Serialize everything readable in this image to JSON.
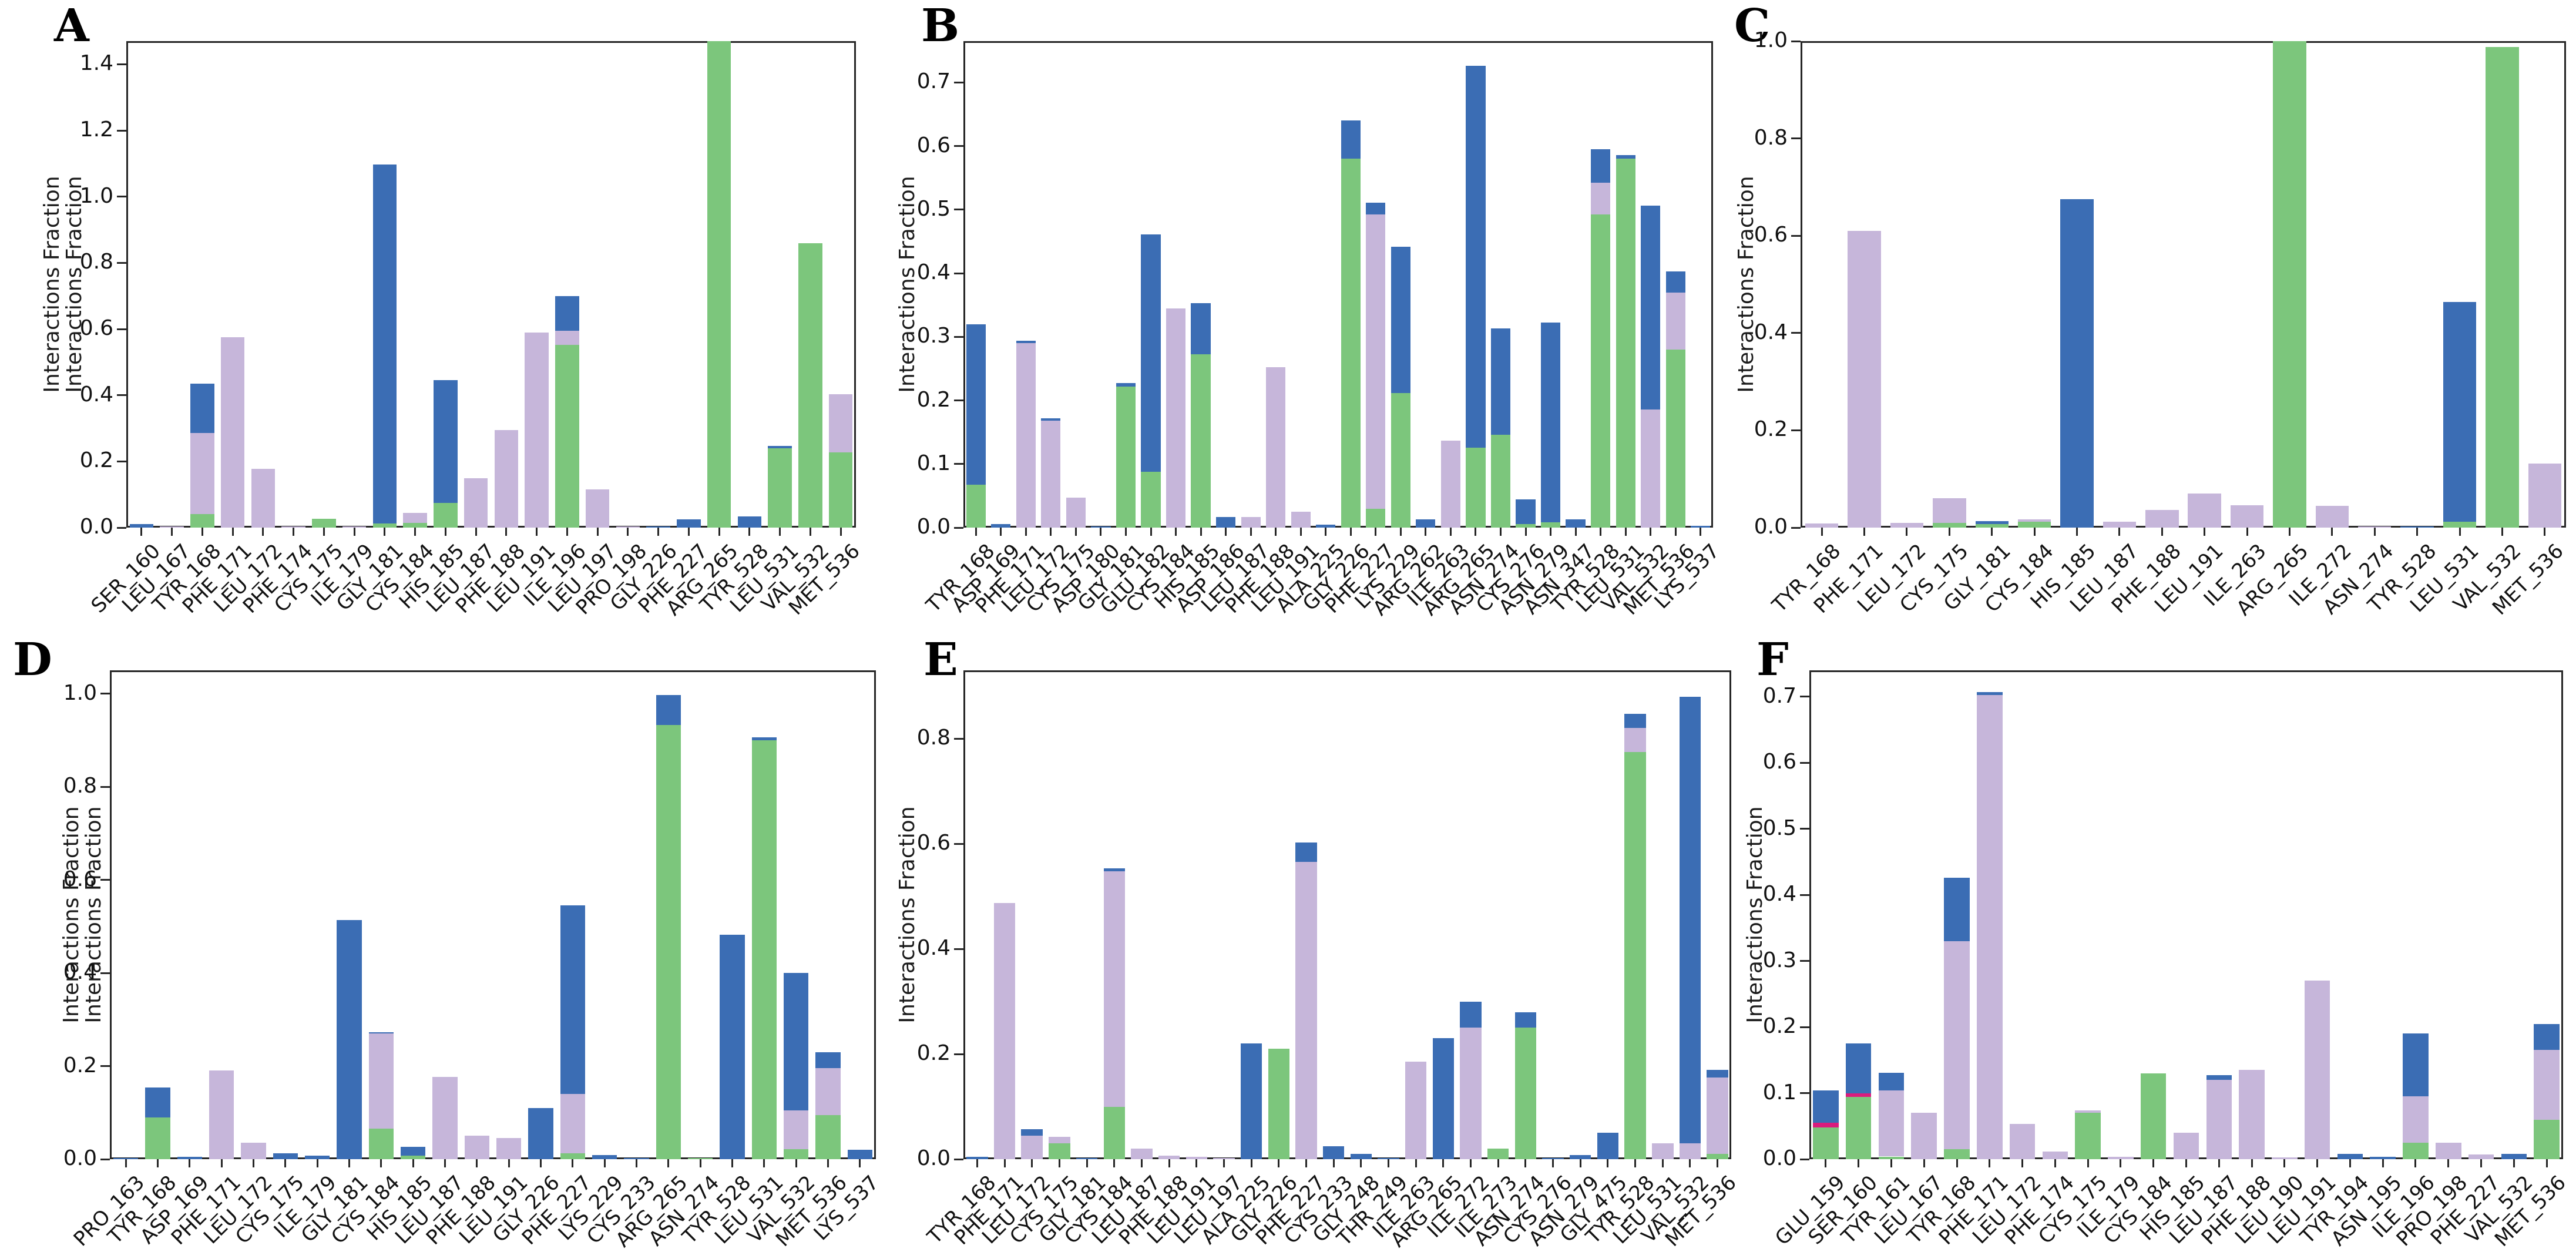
{
  "figure_title": "",
  "colors": {
    "blue": "#3b6db4",
    "green": "#7cc67c",
    "purple": "#c6b6da",
    "magenta": "#da1c7d",
    "axis": "#262626",
    "background": "#ffffff"
  },
  "stack_order": [
    "green",
    "magenta",
    "purple",
    "blue"
  ],
  "chart_data": [
    {
      "id": "A",
      "type": "bar",
      "stacked": true,
      "title": "",
      "xlabel": "",
      "ylabel": "Interactions Fraction",
      "ylabel_repeated": true,
      "ylim": [
        0,
        1.47
      ],
      "grid": false,
      "legend": "none",
      "ytick_labels": [
        "0.0",
        "0.2",
        "0.4",
        "0.6",
        "0.8",
        "1.0",
        "1.2",
        "1.4"
      ],
      "ytick_values": [
        0,
        0.2,
        0.4,
        0.6,
        0.8,
        1.0,
        1.2,
        1.4
      ],
      "categories": [
        "SER_160",
        "LEU_167",
        "TYR_168",
        "PHE_171",
        "LEU_172",
        "PHE_174",
        "CYS_175",
        "ILE_179",
        "GLY_181",
        "CYS_184",
        "HIS_185",
        "LEU_187",
        "PHE_188",
        "LEU_191",
        "ILE_196",
        "LEU_197",
        "PRO_198",
        "GLY_226",
        "PHE_227",
        "ARG_265",
        "TYR_528",
        "LEU_531",
        "VAL_532",
        "MET_536"
      ],
      "stacks": [
        [
          0,
          0,
          0,
          0.01
        ],
        [
          0,
          0,
          0.003,
          0
        ],
        [
          0.04,
          0,
          0.245,
          0.15
        ],
        [
          0,
          0,
          0.575,
          0
        ],
        [
          0,
          0,
          0.178,
          0
        ],
        [
          0,
          0,
          0.003,
          0
        ],
        [
          0.027,
          0,
          0,
          0
        ],
        [
          0,
          0,
          0.003,
          0
        ],
        [
          0.012,
          0,
          0,
          1.085
        ],
        [
          0.015,
          0,
          0.03,
          0
        ],
        [
          0.075,
          0,
          0,
          0.37
        ],
        [
          0,
          0,
          0.15,
          0
        ],
        [
          0,
          0,
          0.295,
          0
        ],
        [
          0,
          0,
          0.59,
          0
        ],
        [
          0.552,
          0,
          0.042,
          0.106
        ],
        [
          0,
          0,
          0.115,
          0
        ],
        [
          0,
          0,
          0.003,
          0
        ],
        [
          0,
          0,
          0,
          0.003
        ],
        [
          0,
          0,
          0,
          0.025
        ],
        [
          1.47,
          0,
          0,
          0
        ],
        [
          0,
          0,
          0,
          0.033
        ],
        [
          0.24,
          0,
          0,
          0.007
        ],
        [
          0.86,
          0,
          0,
          0
        ],
        [
          0.228,
          0,
          0.175,
          0
        ]
      ]
    },
    {
      "id": "B",
      "type": "bar",
      "stacked": true,
      "title": "",
      "xlabel": "",
      "ylabel": "Interactions Fraction",
      "ylabel_repeated": false,
      "ylim": [
        0,
        0.765
      ],
      "grid": false,
      "legend": "none",
      "ytick_labels": [
        "0.0",
        "0.1",
        "0.2",
        "0.3",
        "0.4",
        "0.5",
        "0.6",
        "0.7"
      ],
      "ytick_values": [
        0,
        0.1,
        0.2,
        0.3,
        0.4,
        0.5,
        0.6,
        0.7
      ],
      "categories": [
        "TYR_168",
        "ASP_169",
        "PHE_171",
        "LEU_172",
        "CYS_175",
        "ASP_180",
        "GLY_181",
        "GLU_182",
        "CYS_184",
        "HIS_185",
        "ASP_186",
        "LEU_187",
        "PHE_188",
        "LEU_191",
        "ALA_225",
        "GLY_226",
        "PHE_227",
        "LYS_229",
        "ARG_262",
        "ILE_263",
        "ARG_265",
        "ASN_274",
        "CYS_276",
        "ASN_279",
        "ASN_347",
        "TYR_528",
        "LEU_531",
        "VAL_532",
        "MET_536",
        "LYS_537"
      ],
      "stacks": [
        [
          0.067,
          0,
          0,
          0.253
        ],
        [
          0,
          0,
          0,
          0.006
        ],
        [
          0,
          0,
          0.29,
          0.004
        ],
        [
          0,
          0,
          0.168,
          0.004
        ],
        [
          0,
          0,
          0.047,
          0
        ],
        [
          0,
          0,
          0,
          0.002
        ],
        [
          0.222,
          0,
          0,
          0.005
        ],
        [
          0.088,
          0,
          0,
          0.373
        ],
        [
          0,
          0,
          0.345,
          0
        ],
        [
          0.273,
          0,
          0,
          0.08
        ],
        [
          0,
          0,
          0,
          0.017
        ],
        [
          0,
          0,
          0.017,
          0
        ],
        [
          0,
          0,
          0.252,
          0
        ],
        [
          0,
          0,
          0.025,
          0
        ],
        [
          0,
          0,
          0,
          0.005
        ],
        [
          0.58,
          0,
          0,
          0.06
        ],
        [
          0.03,
          0,
          0.462,
          0.019
        ],
        [
          0.212,
          0,
          0,
          0.23
        ],
        [
          0,
          0,
          0,
          0.013
        ],
        [
          0,
          0,
          0.137,
          0
        ],
        [
          0.126,
          0,
          0,
          0.6
        ],
        [
          0.146,
          0,
          0,
          0.167
        ],
        [
          0.006,
          0,
          0,
          0.038
        ],
        [
          0.008,
          0,
          0,
          0.314
        ],
        [
          0,
          0,
          0,
          0.013
        ],
        [
          0.492,
          0,
          0.05,
          0.053
        ],
        [
          0.58,
          0,
          0,
          0.006
        ],
        [
          0,
          0,
          0.186,
          0.32
        ],
        [
          0.28,
          0,
          0.09,
          0.033
        ],
        [
          0,
          0,
          0,
          0.003
        ]
      ]
    },
    {
      "id": "C",
      "type": "bar",
      "stacked": true,
      "title": "",
      "xlabel": "",
      "ylabel": "Interactions Fraction",
      "ylabel_repeated": false,
      "ylim": [
        0,
        1.0
      ],
      "grid": false,
      "legend": "none",
      "ytick_labels": [
        "0.0",
        "0.2",
        "0.4",
        "0.6",
        "0.8",
        "1.0"
      ],
      "ytick_values": [
        0,
        0.2,
        0.4,
        0.6,
        0.8,
        1.0
      ],
      "categories": [
        "TYR_168",
        "PHE_171",
        "LEU_172",
        "CYS_175",
        "GLY_181",
        "CYS_184",
        "HIS_185",
        "LEU_187",
        "PHE_188",
        "LEU_191",
        "ILE_263",
        "ARG_265",
        "ILE_272",
        "ASN_274",
        "TYR_528",
        "LEU_531",
        "VAL_532",
        "MET_536"
      ],
      "stacks": [
        [
          0,
          0,
          0.008,
          0
        ],
        [
          0,
          0,
          0.61,
          0
        ],
        [
          0,
          0,
          0.01,
          0
        ],
        [
          0.01,
          0,
          0.05,
          0
        ],
        [
          0.007,
          0,
          0,
          0.006
        ],
        [
          0.012,
          0,
          0.005,
          0
        ],
        [
          0,
          0,
          0,
          0.675
        ],
        [
          0,
          0,
          0.012,
          0
        ],
        [
          0,
          0,
          0.036,
          0
        ],
        [
          0,
          0,
          0.07,
          0
        ],
        [
          0,
          0,
          0.046,
          0
        ],
        [
          1.0,
          0,
          0,
          0
        ],
        [
          0,
          0,
          0.045,
          0
        ],
        [
          0,
          0,
          0.002,
          0
        ],
        [
          0,
          0,
          0,
          0.002
        ],
        [
          0.012,
          0,
          0,
          0.452
        ],
        [
          0.988,
          0,
          0,
          0
        ],
        [
          0,
          0,
          0.132,
          0
        ]
      ]
    },
    {
      "id": "D",
      "type": "bar",
      "stacked": true,
      "title": "",
      "xlabel": "",
      "ylabel": "Interactions Fraction",
      "ylabel_repeated": true,
      "ylim": [
        0,
        1.05
      ],
      "grid": false,
      "legend": "none",
      "ytick_labels": [
        "0.0",
        "0.2",
        "0.4",
        "0.6",
        "0.8",
        "1.0"
      ],
      "ytick_values": [
        0,
        0.2,
        0.4,
        0.6,
        0.8,
        1.0
      ],
      "categories": [
        "PRO_163",
        "TYR_168",
        "ASP_169",
        "PHE_171",
        "LEU_172",
        "CYS_175",
        "ILE_179",
        "GLY_181",
        "CYS_184",
        "HIS_185",
        "LEU_187",
        "PHE_188",
        "LEU_191",
        "GLY_226",
        "PHE_227",
        "LYS_229",
        "CYS_233",
        "ARG_265",
        "ASN_274",
        "TYR_528",
        "LEU_531",
        "VAL_532",
        "MET_536",
        "LYS_537"
      ],
      "stacks": [
        [
          0,
          0,
          0,
          0.003
        ],
        [
          0.089,
          0,
          0,
          0.065
        ],
        [
          0,
          0,
          0,
          0.005
        ],
        [
          0,
          0,
          0.19,
          0
        ],
        [
          0,
          0,
          0.035,
          0
        ],
        [
          0,
          0,
          0,
          0.013
        ],
        [
          0,
          0,
          0,
          0.007
        ],
        [
          0,
          0,
          0,
          0.514
        ],
        [
          0.065,
          0,
          0.205,
          0.003
        ],
        [
          0.007,
          0,
          0,
          0.019
        ],
        [
          0,
          0,
          0.177,
          0
        ],
        [
          0,
          0,
          0.05,
          0
        ],
        [
          0,
          0,
          0.046,
          0
        ],
        [
          0,
          0,
          0,
          0.11
        ],
        [
          0.012,
          0,
          0.128,
          0.405
        ],
        [
          0,
          0,
          0,
          0.009
        ],
        [
          0,
          0,
          0,
          0.002
        ],
        [
          0.933,
          0,
          0,
          0.064
        ],
        [
          0.002,
          0,
          0,
          0
        ],
        [
          0,
          0,
          0,
          0.482
        ],
        [
          0.9,
          0,
          0,
          0.006
        ],
        [
          0.022,
          0,
          0.083,
          0.295
        ],
        [
          0.095,
          0,
          0.1,
          0.035
        ],
        [
          0,
          0,
          0,
          0.02
        ]
      ]
    },
    {
      "id": "E",
      "type": "bar",
      "stacked": true,
      "title": "",
      "xlabel": "",
      "ylabel": "Interactions Fraction",
      "ylabel_repeated": false,
      "ylim": [
        0,
        0.93
      ],
      "grid": false,
      "legend": "none",
      "ytick_labels": [
        "0.0",
        "0.2",
        "0.4",
        "0.6",
        "0.8"
      ],
      "ytick_values": [
        0,
        0.2,
        0.4,
        0.6,
        0.8
      ],
      "categories": [
        "TYR_168",
        "PHE_171",
        "LEU_172",
        "CYS_175",
        "GLY_181",
        "CYS_184",
        "LEU_187",
        "PHE_188",
        "LEU_191",
        "LEU_197",
        "ALA_225",
        "GLY_226",
        "PHE_227",
        "CYS_233",
        "GLY_248",
        "THR_249",
        "ILE_263",
        "ARG_265",
        "ILE_272",
        "ILE_273",
        "ASN_274",
        "CYS_276",
        "ASN_279",
        "GLY_475",
        "TYR_528",
        "LEU_531",
        "VAL_532",
        "MET_536"
      ],
      "stacks": [
        [
          0,
          0,
          0,
          0.004
        ],
        [
          0,
          0,
          0.487,
          0
        ],
        [
          0,
          0,
          0.045,
          0.012
        ],
        [
          0.03,
          0,
          0.012,
          0
        ],
        [
          0,
          0,
          0,
          0.002
        ],
        [
          0.1,
          0,
          0.448,
          0.005
        ],
        [
          0,
          0,
          0.02,
          0
        ],
        [
          0,
          0,
          0.007,
          0
        ],
        [
          0,
          0,
          0.005,
          0
        ],
        [
          0,
          0,
          0.002,
          0
        ],
        [
          0,
          0,
          0,
          0.22
        ],
        [
          0.21,
          0,
          0,
          0
        ],
        [
          0,
          0,
          0.566,
          0.036
        ],
        [
          0,
          0,
          0,
          0.025
        ],
        [
          0,
          0,
          0,
          0.01
        ],
        [
          0,
          0,
          0,
          0.002
        ],
        [
          0,
          0,
          0.185,
          0
        ],
        [
          0,
          0,
          0,
          0.23
        ],
        [
          0,
          0,
          0.25,
          0.05
        ],
        [
          0.02,
          0,
          0,
          0
        ],
        [
          0.25,
          0,
          0,
          0.03
        ],
        [
          0,
          0,
          0,
          0.002
        ],
        [
          0,
          0,
          0,
          0.008
        ],
        [
          0,
          0,
          0,
          0.05
        ],
        [
          0.775,
          0,
          0.045,
          0.027
        ],
        [
          0,
          0,
          0.03,
          0
        ],
        [
          0,
          0,
          0.03,
          0.85
        ],
        [
          0.01,
          0,
          0.145,
          0.015
        ]
      ]
    },
    {
      "id": "F",
      "type": "bar",
      "stacked": true,
      "title": "",
      "xlabel": "",
      "ylabel": "Interactions Fraction",
      "ylabel_repeated": false,
      "ylim": [
        0,
        0.74
      ],
      "grid": false,
      "legend": "none",
      "ytick_labels": [
        "0.0",
        "0.1",
        "0.2",
        "0.3",
        "0.4",
        "0.5",
        "0.6",
        "0.7"
      ],
      "ytick_values": [
        0,
        0.1,
        0.2,
        0.3,
        0.4,
        0.5,
        0.6,
        0.7
      ],
      "categories": [
        "GLU_159",
        "SER_160",
        "TYR_161",
        "LEU_167",
        "TYR_168",
        "PHE_171",
        "LEU_172",
        "PHE_174",
        "CYS_175",
        "ILE_179",
        "CYS_184",
        "HIS_185",
        "LEU_187",
        "PHE_188",
        "LEU_190",
        "LEU_191",
        "TYR_194",
        "ASN_195",
        "ILE_196",
        "PRO_198",
        "PHE_227",
        "VAL_532",
        "MET_536"
      ],
      "stacks": [
        [
          0.048,
          0.007,
          0,
          0.049
        ],
        [
          0.094,
          0.006,
          0,
          0.075
        ],
        [
          0.004,
          0,
          0.1,
          0.027
        ],
        [
          0,
          0,
          0.07,
          0
        ],
        [
          0.015,
          0,
          0.315,
          0.096
        ],
        [
          0,
          0,
          0.703,
          0.004
        ],
        [
          0,
          0,
          0.053,
          0
        ],
        [
          0,
          0,
          0.012,
          0
        ],
        [
          0.07,
          0,
          0.004,
          0
        ],
        [
          0,
          0,
          0.004,
          0
        ],
        [
          0.13,
          0,
          0,
          0
        ],
        [
          0,
          0,
          0.04,
          0
        ],
        [
          0,
          0,
          0.12,
          0.007
        ],
        [
          0,
          0,
          0.135,
          0
        ],
        [
          0,
          0,
          0.003,
          0
        ],
        [
          0,
          0,
          0.27,
          0
        ],
        [
          0,
          0,
          0,
          0.008
        ],
        [
          0,
          0,
          0,
          0.004
        ],
        [
          0.025,
          0,
          0.07,
          0.095
        ],
        [
          0,
          0,
          0.025,
          0
        ],
        [
          0,
          0,
          0.007,
          0
        ],
        [
          0,
          0,
          0,
          0.008
        ],
        [
          0.06,
          0,
          0.105,
          0.04
        ]
      ]
    }
  ]
}
